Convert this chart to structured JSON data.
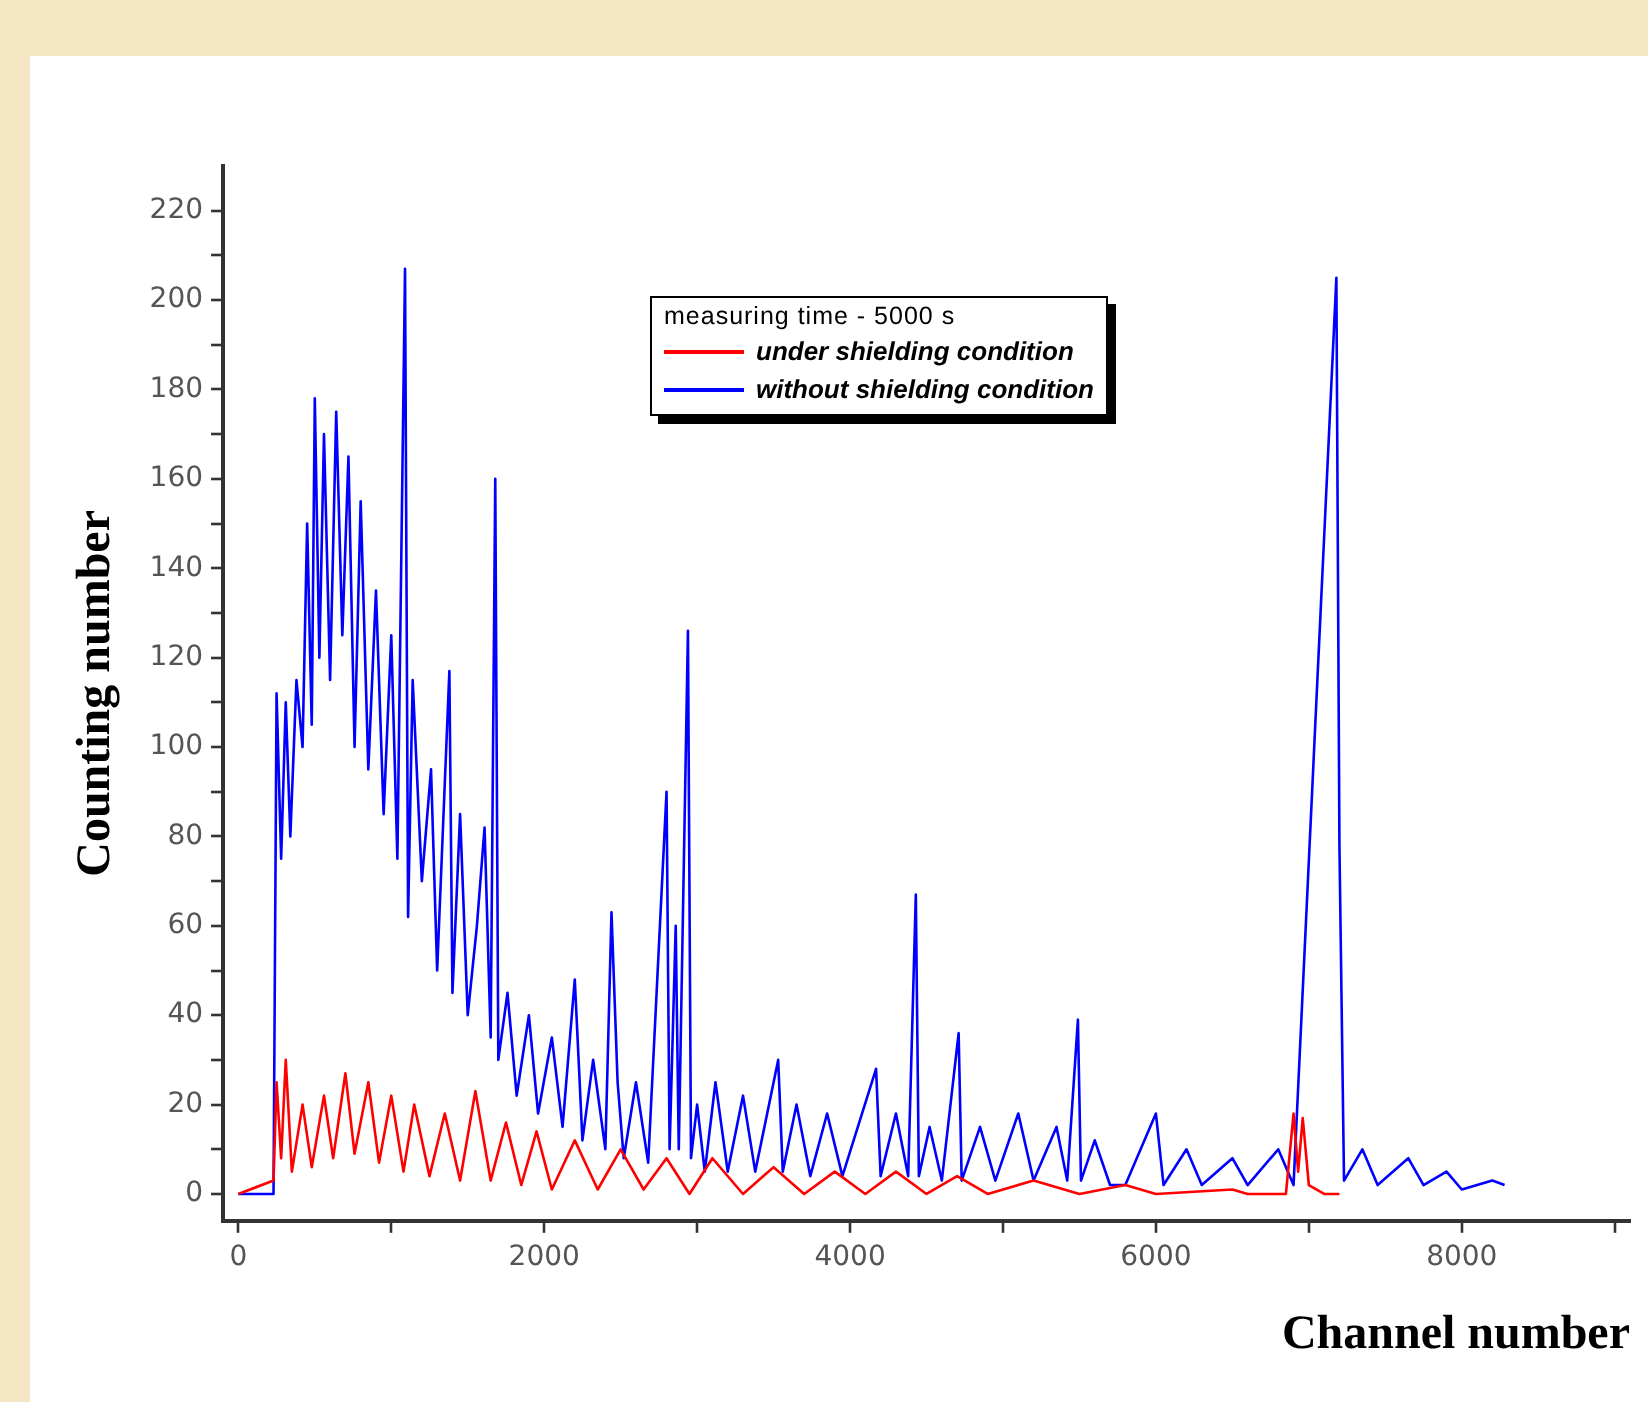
{
  "chart_data": {
    "type": "line",
    "xlabel": "Channel number",
    "ylabel": "Counting number",
    "legend_title": "measuring time - 5000 s",
    "legend": "top right",
    "marker": "none",
    "line_style": "solid",
    "grid": false,
    "xlim": [
      -100,
      9100
    ],
    "ylim": [
      -6,
      230
    ],
    "xticks": [
      0,
      {
        "value": 1000,
        "label": null
      },
      2000,
      {
        "value": 3000,
        "label": null
      },
      4000,
      {
        "value": 5000,
        "label": null
      },
      6000,
      {
        "value": 7000,
        "label": null
      },
      8000,
      {
        "value": 9000,
        "label": null
      }
    ],
    "yticks": [
      0,
      {
        "value": 10,
        "label": null
      },
      20,
      {
        "value": 30,
        "label": null
      },
      40,
      {
        "value": 50,
        "label": null
      },
      60,
      {
        "value": 70,
        "label": null
      },
      80,
      {
        "value": 90,
        "label": null
      },
      100,
      {
        "value": 110,
        "label": null
      },
      120,
      {
        "value": 130,
        "label": null
      },
      140,
      {
        "value": 150,
        "label": null
      },
      160,
      {
        "value": 170,
        "label": null
      },
      180,
      {
        "value": 190,
        "label": null
      },
      200,
      {
        "value": 210,
        "label": null
      },
      220
    ],
    "series": [
      {
        "name": "under shielding condition",
        "color": "#ff0000",
        "x": [
          0,
          230,
          250,
          280,
          310,
          350,
          420,
          480,
          560,
          620,
          700,
          760,
          850,
          920,
          1000,
          1080,
          1150,
          1250,
          1350,
          1450,
          1550,
          1650,
          1750,
          1850,
          1950,
          2050,
          2200,
          2350,
          2500,
          2650,
          2800,
          2950,
          3100,
          3300,
          3500,
          3700,
          3900,
          4100,
          4300,
          4500,
          4700,
          4900,
          5200,
          5500,
          5800,
          6000,
          6500,
          6600,
          6850,
          6900,
          6930,
          6960,
          7000,
          7100,
          7200
        ],
        "values": [
          0,
          3,
          25,
          8,
          30,
          5,
          20,
          6,
          22,
          8,
          27,
          9,
          25,
          7,
          22,
          5,
          20,
          4,
          18,
          3,
          23,
          3,
          16,
          2,
          14,
          1,
          12,
          1,
          10,
          1,
          8,
          0,
          8,
          0,
          6,
          0,
          5,
          0,
          5,
          0,
          4,
          0,
          3,
          0,
          2,
          0,
          1,
          0,
          0,
          18,
          5,
          17,
          2,
          0,
          0
        ]
      },
      {
        "name": "without shielding condition",
        "color": "#0000ff",
        "x": [
          0,
          230,
          250,
          280,
          310,
          340,
          380,
          420,
          450,
          480,
          500,
          530,
          560,
          600,
          640,
          680,
          720,
          760,
          800,
          850,
          900,
          950,
          1000,
          1040,
          1090,
          1110,
          1140,
          1200,
          1260,
          1300,
          1380,
          1400,
          1450,
          1500,
          1560,
          1610,
          1650,
          1680,
          1700,
          1760,
          1820,
          1900,
          1960,
          2050,
          2120,
          2200,
          2250,
          2320,
          2400,
          2440,
          2480,
          2520,
          2600,
          2680,
          2800,
          2820,
          2860,
          2880,
          2940,
          2960,
          3000,
          3050,
          3120,
          3200,
          3300,
          3380,
          3530,
          3560,
          3650,
          3740,
          3850,
          3950,
          4170,
          4200,
          4300,
          4380,
          4430,
          4450,
          4520,
          4600,
          4710,
          4730,
          4850,
          4950,
          5100,
          5200,
          5350,
          5420,
          5490,
          5510,
          5600,
          5700,
          5800,
          6000,
          6050,
          6200,
          6300,
          6500,
          6600,
          6800,
          6900,
          7180,
          7200,
          7230,
          7350,
          7450,
          7650,
          7750,
          7900,
          8000,
          8200,
          8280
        ],
        "values": [
          0,
          0,
          112,
          75,
          110,
          80,
          115,
          100,
          150,
          105,
          178,
          120,
          170,
          115,
          175,
          125,
          165,
          100,
          155,
          95,
          135,
          85,
          125,
          75,
          207,
          62,
          115,
          70,
          95,
          50,
          117,
          45,
          85,
          40,
          60,
          82,
          35,
          160,
          30,
          45,
          22,
          40,
          18,
          35,
          15,
          48,
          12,
          30,
          10,
          63,
          25,
          8,
          25,
          7,
          90,
          10,
          60,
          10,
          126,
          8,
          20,
          5,
          25,
          5,
          22,
          5,
          30,
          5,
          20,
          4,
          18,
          4,
          28,
          4,
          18,
          4,
          67,
          4,
          15,
          3,
          36,
          3,
          15,
          3,
          18,
          3,
          15,
          3,
          39,
          3,
          12,
          2,
          2,
          18,
          2,
          10,
          2,
          8,
          2,
          10,
          2,
          205,
          78,
          3,
          10,
          2,
          8,
          2,
          5,
          1,
          3,
          2
        ]
      }
    ]
  }
}
